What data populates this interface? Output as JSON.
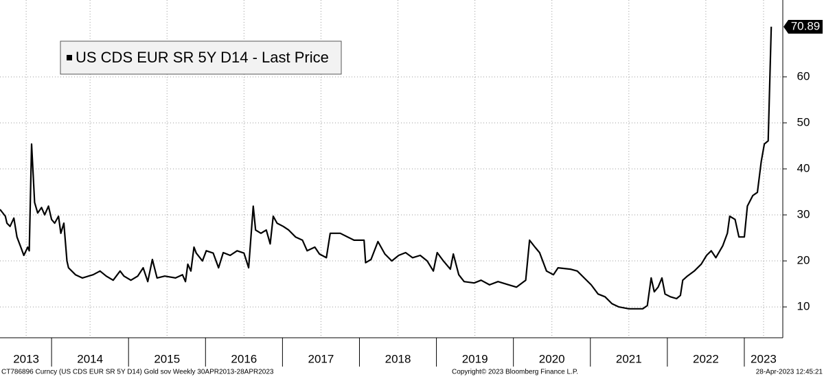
{
  "chart_data": {
    "type": "line",
    "legend": "upper left",
    "grid": true,
    "x": [
      2013.33,
      2013.4,
      2013.42,
      2013.46,
      2013.51,
      2013.55,
      2013.6,
      2013.64,
      2013.69,
      2013.71,
      2013.74,
      2013.78,
      2013.82,
      2013.87,
      2013.91,
      2013.96,
      2014.0,
      2014.04,
      2014.09,
      2014.12,
      2014.16,
      2014.2,
      2014.22,
      2014.31,
      2014.4,
      2014.54,
      2014.63,
      2014.71,
      2014.8,
      2014.89,
      2014.94,
      2015.03,
      2015.12,
      2015.19,
      2015.25,
      2015.31,
      2015.37,
      2015.47,
      2015.61,
      2015.7,
      2015.74,
      2015.77,
      2015.81,
      2015.85,
      2015.88,
      2015.96,
      2016.01,
      2016.1,
      2016.17,
      2016.23,
      2016.32,
      2016.41,
      2016.5,
      2016.56,
      2016.62,
      2016.65,
      2016.72,
      2016.79,
      2016.84,
      2016.88,
      2016.93,
      2017.01,
      2017.08,
      2017.17,
      2017.26,
      2017.32,
      2017.42,
      2017.48,
      2017.57,
      2017.62,
      2017.75,
      2017.93,
      2018.06,
      2018.08,
      2018.15,
      2018.24,
      2018.33,
      2018.42,
      2018.51,
      2018.6,
      2018.69,
      2018.79,
      2018.88,
      2018.96,
      2019.01,
      2019.09,
      2019.18,
      2019.22,
      2019.29,
      2019.36,
      2019.49,
      2019.58,
      2019.69,
      2019.8,
      2019.94,
      2020.04,
      2020.16,
      2020.21,
      2020.28,
      2020.34,
      2020.43,
      2020.52,
      2020.58,
      2020.74,
      2020.83,
      2020.92,
      2021.01,
      2021.1,
      2021.19,
      2021.28,
      2021.37,
      2021.5,
      2021.68,
      2021.74,
      2021.79,
      2021.83,
      2021.88,
      2021.93,
      2021.97,
      2022.04,
      2022.12,
      2022.17,
      2022.2,
      2022.26,
      2022.35,
      2022.44,
      2022.51,
      2022.57,
      2022.63,
      2022.72,
      2022.78,
      2022.81,
      2022.88,
      2022.93,
      2023.0,
      2023.04,
      2023.11,
      2023.17,
      2023.22,
      2023.26,
      2023.31,
      2023.35
    ],
    "series": [
      {
        "name": "US CDS EUR SR 5Y D14 - Last Price",
        "color": "#000000",
        "values": [
          31.2,
          29.7,
          28.2,
          27.5,
          29.3,
          25.2,
          23,
          21.2,
          23,
          22.2,
          45.4,
          32.7,
          30.4,
          31.6,
          30,
          31.9,
          29,
          28.2,
          29.7,
          26,
          28.2,
          20,
          18.5,
          17,
          16.3,
          17,
          17.8,
          16.7,
          15.8,
          17.8,
          16.7,
          15.8,
          16.7,
          18.5,
          15.5,
          20.3,
          16.3,
          16.7,
          16.3,
          17,
          15.5,
          19.3,
          17.8,
          23,
          21.7,
          20,
          22.2,
          21.7,
          18.5,
          21.8,
          21.2,
          22.2,
          21.7,
          18.5,
          31.9,
          26.7,
          26,
          26.7,
          23.7,
          29.7,
          28.2,
          27.5,
          26.7,
          25.2,
          24.5,
          22.2,
          23,
          21.5,
          20.7,
          26,
          26,
          24.5,
          24.5,
          19.6,
          20.3,
          24.2,
          21.5,
          20,
          21.2,
          21.8,
          20.7,
          21.2,
          20,
          17.8,
          21.8,
          20,
          18.2,
          21.5,
          17,
          15.5,
          15.2,
          15.8,
          14.8,
          15.5,
          14.8,
          14.3,
          15.8,
          24.5,
          23,
          21.8,
          17.8,
          17,
          18.5,
          18.2,
          17.8,
          16.3,
          14.8,
          12.8,
          12.2,
          10.7,
          10,
          9.6,
          9.6,
          10.3,
          16.3,
          13.3,
          14.3,
          16.3,
          12.8,
          12.2,
          11.8,
          12.5,
          15.8,
          16.7,
          17.8,
          19.3,
          21.2,
          22.2,
          20.7,
          23.3,
          26,
          29.7,
          29,
          25.2,
          25.2,
          31.9,
          34.2,
          34.9,
          41.6,
          45.4,
          46.1,
          70.89
        ]
      }
    ],
    "xlim": [
      2013.33,
      2023.5
    ],
    "xticks": [
      {
        "value": 2013.67,
        "label": "2013"
      },
      {
        "value": 2014.5,
        "label": "2014"
      },
      {
        "value": 2015.5,
        "label": "2015"
      },
      {
        "value": 2016.5,
        "label": "2016"
      },
      {
        "value": 2017.5,
        "label": "2017"
      },
      {
        "value": 2018.5,
        "label": "2018"
      },
      {
        "value": 2019.5,
        "label": "2019"
      },
      {
        "value": 2020.5,
        "label": "2020"
      },
      {
        "value": 2021.5,
        "label": "2021"
      },
      {
        "value": 2022.5,
        "label": "2022"
      },
      {
        "value": 2023.25,
        "label": "2023"
      }
    ],
    "xdividers": [
      2014,
      2015,
      2016,
      2017,
      2018,
      2019,
      2020,
      2021,
      2022,
      2023
    ],
    "ylim": [
      3.3,
      76.7
    ],
    "yticks": [
      10,
      20,
      30,
      40,
      50,
      60
    ]
  },
  "footer": {
    "left": "CT786896 Curncy (US CDS EUR SR 5Y D14) Gold sov  Weekly 30APR2013-28APR2023",
    "center": "Copyright© 2023 Bloomberg Finance L.P.",
    "right": "28-Apr-2023 12:45:21"
  }
}
